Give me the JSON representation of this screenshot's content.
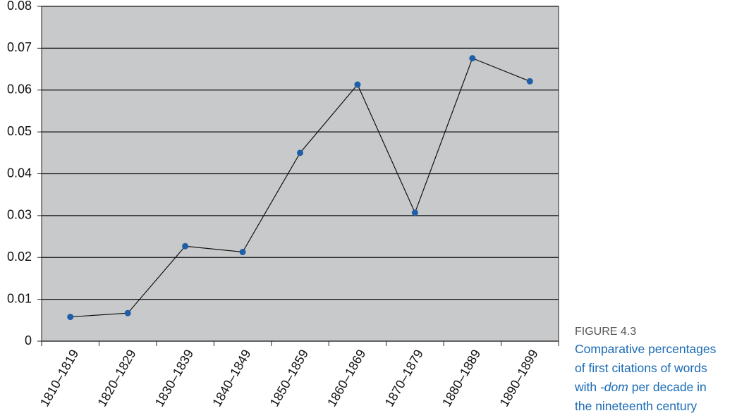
{
  "chart_data": {
    "type": "line",
    "categories": [
      "1810–1819",
      "1820–1829",
      "1830–1839",
      "1840–1849",
      "1850–1859",
      "1860–1869",
      "1870–1879",
      "1880–1889",
      "1890–1899"
    ],
    "series": [
      {
        "color": "#1f5fa8",
        "values": [
          0.0058,
          0.0067,
          0.0227,
          0.0213,
          0.045,
          0.0613,
          0.0307,
          0.0676,
          0.0621
        ]
      }
    ],
    "ylim": [
      0,
      0.08
    ],
    "yticks": [
      0,
      0.01,
      0.02,
      0.03,
      0.04,
      0.05,
      0.06,
      0.07,
      0.08
    ],
    "grid": true
  },
  "caption": {
    "label": "FIGURE 4.3",
    "lines": [
      "Comparative percentages",
      "of first citations of words",
      [
        "with ",
        "-dom",
        " per decade in"
      ],
      "the nineteenth century"
    ]
  }
}
